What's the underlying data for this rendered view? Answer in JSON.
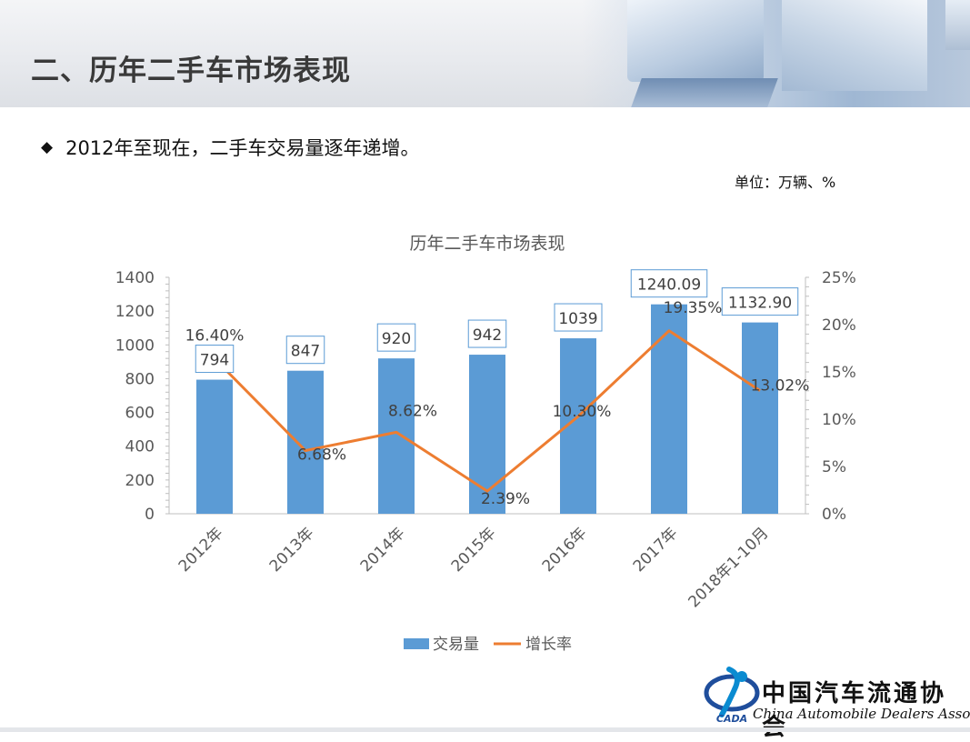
{
  "header": {
    "title": "二、历年二手车市场表现"
  },
  "bullet": {
    "icon": "diamond-bullet-icon",
    "text": "2012年至现在，二手车交易量逐年递增。"
  },
  "unit": "单位：万辆、%",
  "chart_data": {
    "type": "bar",
    "title": "历年二手车市场表现",
    "categories": [
      "2012年",
      "2013年",
      "2014年",
      "2015年",
      "2016年",
      "2017年",
      "2018年1-10月"
    ],
    "series": [
      {
        "name": "交易量",
        "type": "bar",
        "axis": "left",
        "color": "#5b9bd5",
        "values": [
          794,
          847,
          920,
          942,
          1039,
          1240.09,
          1132.9
        ],
        "labels": [
          "794",
          "847",
          "920",
          "942",
          "1039",
          "1240.09",
          "1132.90"
        ]
      },
      {
        "name": "增长率",
        "type": "line",
        "axis": "right",
        "color": "#ed7d31",
        "values": [
          16.4,
          6.68,
          8.62,
          2.39,
          10.3,
          19.35,
          13.02
        ],
        "labels": [
          "16.40%",
          "6.68%",
          "8.62%",
          "2.39%",
          "10.30%",
          "19.35%",
          "13.02%"
        ]
      }
    ],
    "y_left": {
      "min": 0,
      "max": 1400,
      "step": 200,
      "ticks": [
        "0",
        "200",
        "400",
        "600",
        "800",
        "1000",
        "1200",
        "1400"
      ]
    },
    "y_right": {
      "min": 0,
      "max": 25,
      "step": 5,
      "ticks": [
        "0%",
        "5%",
        "10%",
        "15%",
        "20%",
        "25%"
      ]
    },
    "legend": {
      "position": "bottom"
    },
    "grid": false
  },
  "logo": {
    "cn": "中国汽车流通协会",
    "en": "China Automobile Dealers Association",
    "mark": "CADA"
  }
}
